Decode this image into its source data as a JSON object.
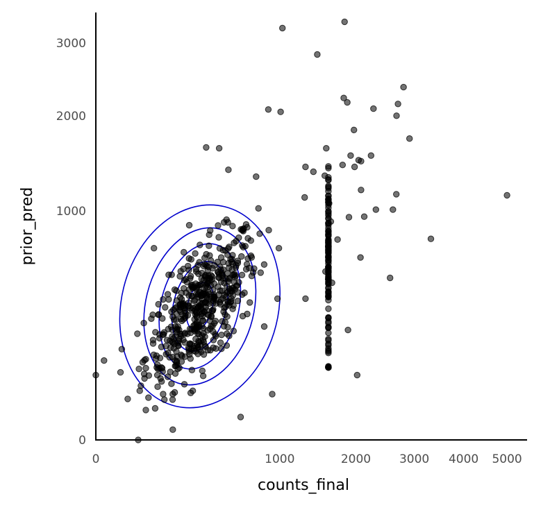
{
  "chart_data": {
    "type": "scatter",
    "xlabel": "counts_final",
    "ylabel": "prior_pred",
    "x_scale": "sqrt",
    "y_scale": "sqrt",
    "xlim": [
      0,
      5500
    ],
    "ylim": [
      0,
      3480
    ],
    "x_ticks": [
      0,
      1000,
      2000,
      3000,
      4000,
      5000
    ],
    "x_tick_labels": [
      "0",
      "1000",
      "2000",
      "3000",
      "4000",
      "5000"
    ],
    "y_ticks": [
      0,
      1000,
      2000,
      3000
    ],
    "y_tick_labels": [
      "0",
      "1000",
      "2000",
      "3000"
    ],
    "grid": false,
    "legend": "none",
    "point_color": "#000000",
    "point_alpha": 0.55,
    "contour_color": "#0000cc",
    "contour_center": [
      320,
      340
    ],
    "contour_levels": 5,
    "points": [
      [
        0,
        80
      ],
      [
        100,
        700
      ],
      [
        110,
        100
      ],
      [
        150,
        190
      ],
      [
        170,
        520
      ],
      [
        1030,
        3230
      ],
      [
        1830,
        3330
      ],
      [
        1450,
        2830
      ],
      [
        2800,
        2370
      ],
      [
        1870,
        2170
      ],
      [
        2700,
        2150
      ],
      [
        2280,
        2090
      ],
      [
        880,
        2080
      ],
      [
        1010,
        2050
      ],
      [
        2910,
        1730
      ],
      [
        1970,
        1830
      ],
      [
        360,
        1630
      ],
      [
        1570,
        1620
      ],
      [
        1920,
        1540
      ],
      [
        2240,
        1540
      ],
      [
        2080,
        1480
      ],
      [
        1980,
        1420
      ],
      [
        1800,
        1440
      ],
      [
        1300,
        1420
      ],
      [
        1400,
        1370
      ],
      [
        1550,
        1330
      ],
      [
        5000,
        1140
      ],
      [
        2670,
        1150
      ],
      [
        1290,
        1120
      ],
      [
        2080,
        1190
      ],
      [
        2320,
        1010
      ],
      [
        2610,
        1010
      ],
      [
        2130,
        950
      ],
      [
        3320,
        770
      ],
      [
        2560,
        500
      ],
      [
        2020,
        80
      ],
      [
        1880,
        230
      ],
      [
        1650,
        470
      ],
      [
        1560,
        540
      ],
      [
        1300,
        380
      ],
      [
        920,
        40
      ],
      [
        620,
        10
      ],
      [
        450,
        1620
      ],
      [
        520,
        1390
      ],
      [
        760,
        1320
      ]
    ]
  }
}
